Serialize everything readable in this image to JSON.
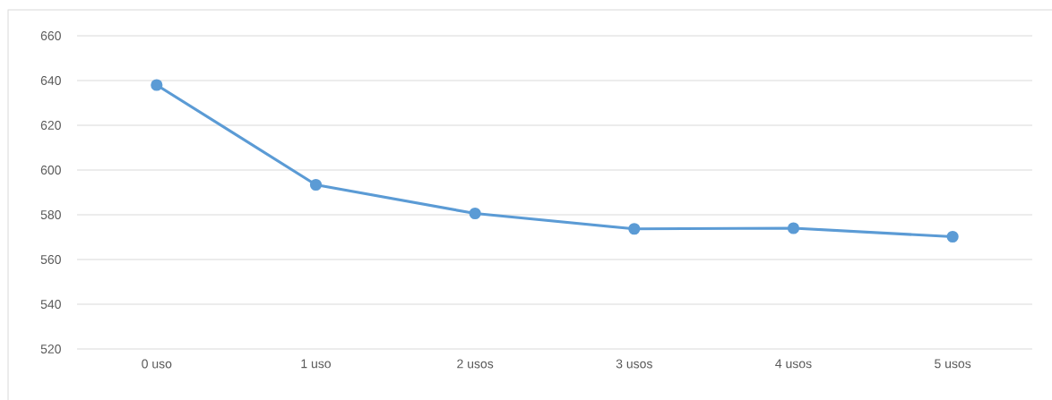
{
  "chart_data": {
    "type": "line",
    "categories": [
      "0 uso",
      "1 uso",
      "2 usos",
      "3 usos",
      "4 usos",
      "5 usos"
    ],
    "series": [
      {
        "color": "#5b9bd5",
        "values": [
          638,
          593.4,
          580.6,
          573.7,
          574,
          570.2
        ]
      }
    ],
    "ylim": [
      520,
      660
    ],
    "yticks": [
      520,
      540,
      560,
      580,
      600,
      620,
      640,
      660
    ],
    "grid": "y",
    "marker": "circle",
    "line_style": "solid"
  }
}
